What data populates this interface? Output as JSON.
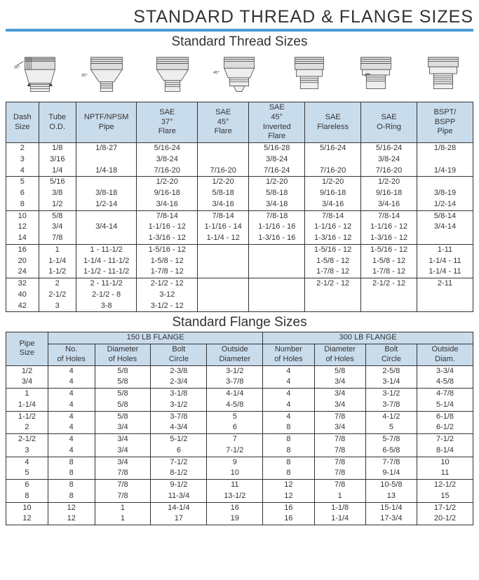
{
  "page": {
    "main_title": "STANDARD THREAD & FLANGE SIZES",
    "thread_section_title": "Standard Thread Sizes",
    "flange_section_title": "Standard Flange Sizes",
    "header_bg": "#c9dcec",
    "border_color": "#333333",
    "bar_color": "#4a9dd4"
  },
  "thread_table": {
    "columns": [
      "Dash Size",
      "Tube O.D.",
      "NPTF/NPSM Pipe",
      "SAE 37° Flare",
      "SAE 45° Flare",
      "SAE 45° Inverted Flare",
      "SAE Flareless",
      "SAE O-Ring",
      "BSPT/ BSPP Pipe"
    ],
    "col_widths": [
      "7%",
      "8%",
      "13%",
      "13%",
      "11%",
      "12%",
      "12%",
      "12%",
      "12%"
    ],
    "groups": [
      [
        [
          "2",
          "1/8",
          "1/8-27",
          "5/16-24",
          "",
          "5/16-28",
          "5/16-24",
          "5/16-24",
          "1/8-28"
        ],
        [
          "3",
          "3/16",
          "",
          "3/8-24",
          "",
          "3/8-24",
          "",
          "3/8-24",
          ""
        ],
        [
          "4",
          "1/4",
          "1/4-18",
          "7/16-20",
          "7/16-20",
          "7/16-24",
          "7/16-20",
          "7/16-20",
          "1/4-19"
        ]
      ],
      [
        [
          "5",
          "5/16",
          "",
          "1/2-20",
          "1/2-20",
          "1/2-20",
          "1/2-20",
          "1/2-20",
          ""
        ],
        [
          "6",
          "3/8",
          "3/8-18",
          "9/16-18",
          "5/8-18",
          "5/8-18",
          "9/16-18",
          "9/16-18",
          "3/8-19"
        ],
        [
          "8",
          "1/2",
          "1/2-14",
          "3/4-16",
          "3/4-16",
          "3/4-18",
          "3/4-16",
          "3/4-16",
          "1/2-14"
        ]
      ],
      [
        [
          "10",
          "5/8",
          "",
          "7/8-14",
          "7/8-14",
          "7/8-18",
          "7/8-14",
          "7/8-14",
          "5/8-14"
        ],
        [
          "12",
          "3/4",
          "3/4-14",
          "1-1/16 - 12",
          "1-1/16 - 14",
          "1-1/16 - 16",
          "1-1/16 - 12",
          "1-1/16 - 12",
          "3/4-14"
        ],
        [
          "14",
          "7/8",
          "",
          "1-3/16 - 12",
          "1-1/4 - 12",
          "1-3/16 - 16",
          "1-3/16 - 12",
          "1-3/16 - 12",
          ""
        ]
      ],
      [
        [
          "16",
          "1",
          "1 - 11-1/2",
          "1-5/16 - 12",
          "",
          "",
          "1-5/16 - 12",
          "1-5/16 - 12",
          "1-11"
        ],
        [
          "20",
          "1-1/4",
          "1-1/4 - 11-1/2",
          "1-5/8 - 12",
          "",
          "",
          "1-5/8 - 12",
          "1-5/8 - 12",
          "1-1/4 - 11"
        ],
        [
          "24",
          "1-1/2",
          "1-1/2 - 11-1/2",
          "1-7/8 - 12",
          "",
          "",
          "1-7/8 - 12",
          "1-7/8 - 12",
          "1-1/4 - 11"
        ]
      ],
      [
        [
          "32",
          "2",
          "2 - 11-1/2",
          "2-1/2 - 12",
          "",
          "",
          "2-1/2 - 12",
          "2-1/2 - 12",
          "2-11"
        ],
        [
          "40",
          "2-1/2",
          "2-1/2 - 8",
          "3-12",
          "",
          "",
          "",
          "",
          ""
        ],
        [
          "42",
          "3",
          "3-8",
          "3-1/2 - 12",
          "",
          "",
          "",
          "",
          ""
        ]
      ]
    ]
  },
  "flange_table": {
    "top_headers": [
      "Pipe Size",
      "150 LB FLANGE",
      "300 LB FLANGE"
    ],
    "sub_headers": [
      "No. of Holes",
      "Diameter of Holes",
      "Bolt Circle",
      "Outside Diameter",
      "Number of Holes",
      "Diameter of Holes",
      "Bolt Circle",
      "Outside Diam."
    ],
    "col_widths": [
      "9%",
      "10%",
      "12%",
      "12%",
      "12%",
      "11%",
      "11%",
      "11%",
      "12%"
    ],
    "groups": [
      [
        [
          "1/2",
          "4",
          "5/8",
          "2-3/8",
          "3-1/2",
          "4",
          "5/8",
          "2-5/8",
          "3-3/4"
        ],
        [
          "3/4",
          "4",
          "5/8",
          "2-3/4",
          "3-7/8",
          "4",
          "3/4",
          "3-1/4",
          "4-5/8"
        ]
      ],
      [
        [
          "1",
          "4",
          "5/8",
          "3-1/8",
          "4-1/4",
          "4",
          "3/4",
          "3-1/2",
          "4-7/8"
        ],
        [
          "1-1/4",
          "4",
          "5/8",
          "3-1/2",
          "4-5/8",
          "4",
          "3/4",
          "3-7/8",
          "5-1/4"
        ]
      ],
      [
        [
          "1-1/2",
          "4",
          "5/8",
          "3-7/8",
          "5",
          "4",
          "7/8",
          "4-1/2",
          "6-1/8"
        ],
        [
          "2",
          "4",
          "3/4",
          "4-3/4",
          "6",
          "8",
          "3/4",
          "5",
          "6-1/2"
        ]
      ],
      [
        [
          "2-1/2",
          "4",
          "3/4",
          "5-1/2",
          "7",
          "8",
          "7/8",
          "5-7/8",
          "7-1/2"
        ],
        [
          "3",
          "4",
          "3/4",
          "6",
          "7-1/2",
          "8",
          "7/8",
          "6-5/8",
          "8-1/4"
        ]
      ],
      [
        [
          "4",
          "8",
          "3/4",
          "7-1/2",
          "9",
          "8",
          "7/8",
          "7-7/8",
          "10"
        ],
        [
          "5",
          "8",
          "7/8",
          "8-1/2",
          "10",
          "8",
          "7/8",
          "9-1/4",
          "11"
        ]
      ],
      [
        [
          "6",
          "8",
          "7/8",
          "9-1/2",
          "11",
          "12",
          "7/8",
          "10-5/8",
          "12-1/2"
        ],
        [
          "8",
          "8",
          "7/8",
          "11-3/4",
          "13-1/2",
          "12",
          "1",
          "13",
          "15"
        ]
      ],
      [
        [
          "10",
          "12",
          "1",
          "14-1/4",
          "16",
          "16",
          "1-1/8",
          "15-1/4",
          "17-1/2"
        ],
        [
          "12",
          "12",
          "1",
          "17",
          "19",
          "16",
          "1-1/4",
          "17-3/4",
          "20-1/2"
        ]
      ]
    ]
  }
}
